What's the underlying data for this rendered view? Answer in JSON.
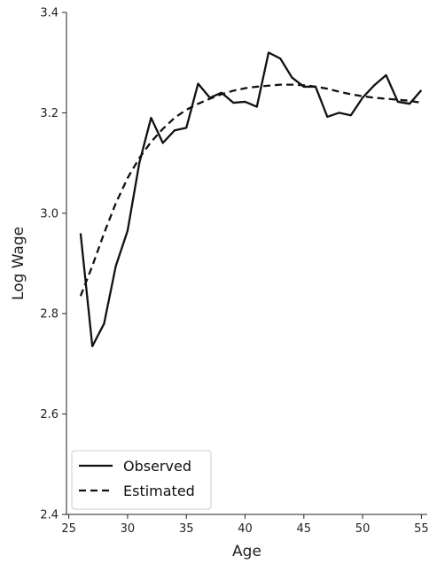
{
  "chart_data": {
    "type": "line",
    "title": "",
    "xlabel": "Age",
    "ylabel": "Log Wage",
    "xlim": [
      24.8,
      55.5
    ],
    "ylim": [
      2.4,
      3.4
    ],
    "xticks": [
      25,
      30,
      35,
      40,
      45,
      50,
      55
    ],
    "yticks": [
      2.4,
      2.6,
      2.8,
      3.0,
      3.2,
      3.4
    ],
    "xtick_labels": [
      "25",
      "30",
      "35",
      "40",
      "45",
      "50",
      "55"
    ],
    "ytick_labels": [
      "2.4",
      "2.6",
      "2.8",
      "3.0",
      "3.2",
      "3.4"
    ],
    "grid": false,
    "legend_position": "bottom-left",
    "series": [
      {
        "name": "Observed",
        "style": "solid",
        "color": "#111111",
        "x": [
          26,
          27,
          28,
          29,
          30,
          31,
          32,
          33,
          34,
          35,
          36,
          37,
          38,
          39,
          40,
          41,
          42,
          43,
          44,
          45,
          46,
          47,
          48,
          49,
          50,
          51,
          52,
          53,
          54,
          55
        ],
        "y": [
          2.96,
          2.735,
          2.78,
          2.895,
          2.965,
          3.1,
          3.19,
          3.14,
          3.165,
          3.17,
          3.258,
          3.23,
          3.24,
          3.22,
          3.222,
          3.212,
          3.32,
          3.308,
          3.27,
          3.252,
          3.252,
          3.192,
          3.2,
          3.195,
          3.23,
          3.255,
          3.275,
          3.222,
          3.218,
          3.245
        ]
      },
      {
        "name": "Estimated",
        "style": "dashed",
        "color": "#111111",
        "x": [
          26,
          27,
          28,
          29,
          30,
          31,
          32,
          33,
          34,
          35,
          36,
          37,
          38,
          39,
          40,
          41,
          42,
          43,
          44,
          45,
          46,
          47,
          48,
          49,
          50,
          51,
          52,
          53,
          54,
          55
        ],
        "y": [
          2.835,
          2.895,
          2.96,
          3.02,
          3.07,
          3.11,
          3.142,
          3.168,
          3.19,
          3.206,
          3.218,
          3.228,
          3.237,
          3.244,
          3.249,
          3.252,
          3.254,
          3.256,
          3.256,
          3.255,
          3.252,
          3.248,
          3.242,
          3.237,
          3.233,
          3.23,
          3.228,
          3.226,
          3.224,
          3.22
        ]
      }
    ]
  }
}
